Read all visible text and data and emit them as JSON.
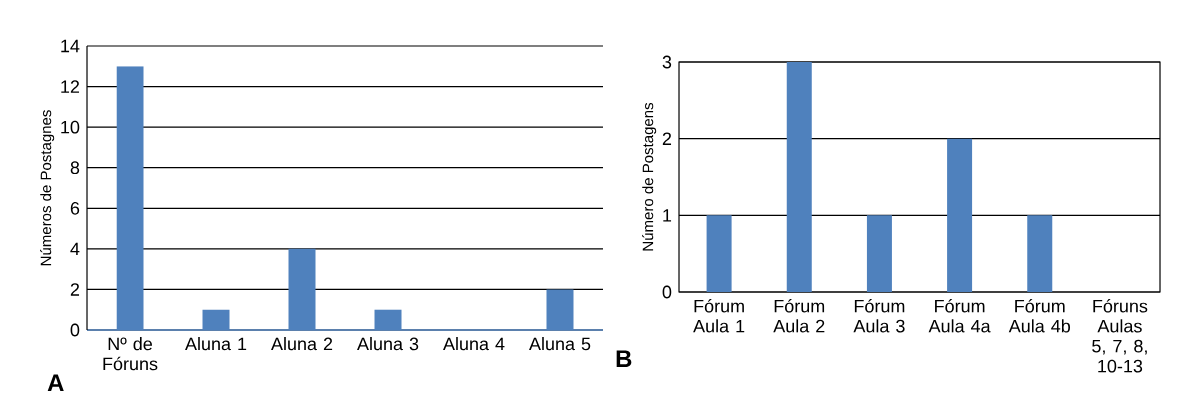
{
  "chart_data": [
    {
      "type": "bar",
      "categories": [
        "Nº de Fóruns",
        "Aluna 1",
        "Aluna 2",
        "Aluna 3",
        "Aluna 4",
        "Aluna 5"
      ],
      "values": [
        13,
        1,
        4,
        1,
        0,
        2
      ],
      "color": "#4f81bd",
      "ylabel": "Números de Postagnes",
      "ylim": [
        0,
        14
      ],
      "yticks": [
        0,
        2,
        4,
        6,
        8,
        10,
        12,
        14
      ],
      "grid": "y",
      "annotations": [
        "A"
      ]
    },
    {
      "type": "bar",
      "categories": [
        "Fórum Aula 1",
        "Fórum Aula 2",
        "Fórum Aula 3",
        "Fórum Aula 4a",
        "Fórum Aula 4b",
        "Fóruns Aulas 5, 7, 8, 10-13"
      ],
      "values": [
        1,
        3,
        1,
        2,
        1,
        0
      ],
      "color": "#4f81bd",
      "ylabel": "Número de Postagens",
      "ylim": [
        0,
        3
      ],
      "yticks": [
        0,
        1,
        2,
        3
      ],
      "grid": "y",
      "annotations": [
        "B"
      ]
    }
  ]
}
